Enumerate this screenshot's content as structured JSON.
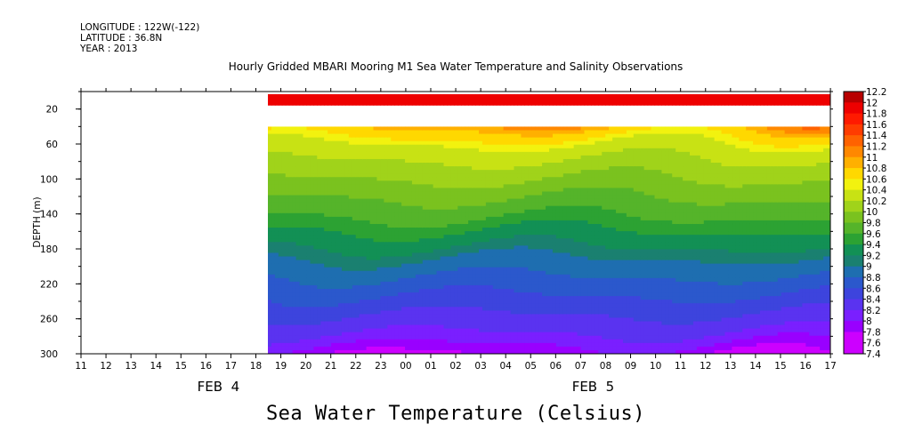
{
  "header": {
    "longitude": "LONGITUDE : 122W(-122)",
    "latitude": "LATITUDE : 36.8N",
    "year": "YEAR : 2013"
  },
  "plot_title": "Hourly Gridded MBARI Mooring M1 Sea Water Temperature and Salinity Observations",
  "main_label": "Sea Water Temperature (Celsius)",
  "colors": {
    "ramp": [
      "#cc00ff",
      "#9900ff",
      "#7a1fff",
      "#5a33f0",
      "#3d44dd",
      "#2b58cc",
      "#1e6eb0",
      "#1a8070",
      "#129055",
      "#2ca233",
      "#55b42a",
      "#7ac21f",
      "#a0d31a",
      "#c8e214",
      "#f2f20f",
      "#ffd800",
      "#ffb000",
      "#ff8800",
      "#ff6200",
      "#ff3c00",
      "#ff1a00",
      "#ee0000",
      "#b80000"
    ]
  },
  "chart_data": {
    "type": "heatmap",
    "title": "Hourly Gridded MBARI Mooring M1 Sea Water Temperature and Salinity Observations",
    "ylabel": "DEPTH (m)",
    "xlabel": "",
    "x_ticks": [
      "11",
      "12",
      "13",
      "14",
      "15",
      "16",
      "17",
      "18",
      "19",
      "20",
      "21",
      "22",
      "23",
      "00",
      "01",
      "02",
      "03",
      "04",
      "05",
      "06",
      "07",
      "08",
      "09",
      "10",
      "11",
      "12",
      "13",
      "14",
      "15",
      "16",
      "17"
    ],
    "date_labels": [
      "FEB  4",
      "FEB  5"
    ],
    "y_ticks": [
      20,
      60,
      100,
      140,
      180,
      220,
      260,
      300
    ],
    "ylim": [
      300,
      0
    ],
    "colorbar_labels": [
      "12.2",
      "12",
      "11.8",
      "11.6",
      "11.4",
      "11.2",
      "11",
      "10.8",
      "10.6",
      "10.4",
      "10.2",
      "10",
      "9.8",
      "9.6",
      "9.4",
      "9.2",
      "9",
      "8.8",
      "8.6",
      "8.4",
      "8.2",
      "8",
      "7.8",
      "7.6",
      "7.4"
    ],
    "data_start": "19",
    "depth_levels": [
      10,
      40,
      50,
      60,
      70,
      80,
      90,
      100,
      110,
      120,
      130,
      140,
      150,
      160,
      170,
      180,
      190,
      200,
      210,
      220,
      230,
      240,
      250,
      260,
      270,
      280,
      290,
      300
    ],
    "profile_temperature": [
      12.1,
      10.9,
      10.7,
      10.4,
      10.3,
      10.2,
      10.1,
      10.0,
      9.9,
      9.8,
      9.7,
      9.6,
      9.5,
      9.3,
      9.2,
      9.1,
      8.9,
      8.8,
      8.7,
      8.6,
      8.5,
      8.4,
      8.3,
      8.2,
      8.1,
      8.0,
      7.8,
      7.6
    ]
  }
}
